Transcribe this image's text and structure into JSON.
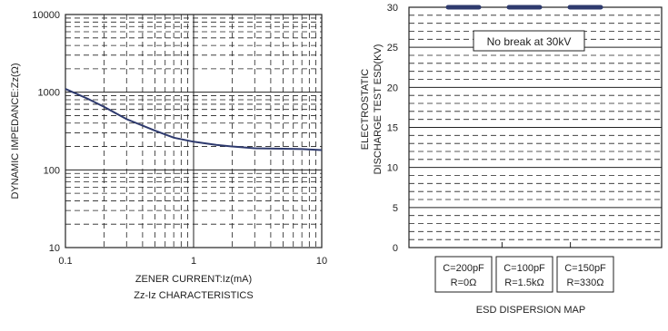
{
  "chart_data": [
    {
      "type": "line",
      "title": "Zz-Iz CHARACTERISTICS",
      "xlabel": "ZENER CURRENT:Iz(mA)",
      "ylabel": "DYNAMIC IMPEDANCE:Zz(Ω)",
      "xscale": "log",
      "yscale": "log",
      "xlim": [
        0.1,
        10
      ],
      "ylim": [
        10,
        10000
      ],
      "x_ticks": [
        "0.1",
        "1",
        "10"
      ],
      "y_ticks": [
        "10",
        "100",
        "1000",
        "10000"
      ],
      "grid": true,
      "line_color": "#2e3a6e",
      "series": [
        {
          "x": [
            0.1,
            0.15,
            0.2,
            0.3,
            0.5,
            0.7,
            1,
            1.5,
            2,
            3,
            5,
            7,
            10
          ],
          "y": [
            1100,
            820,
            650,
            450,
            320,
            260,
            230,
            210,
            200,
            190,
            187,
            185,
            180
          ]
        }
      ]
    },
    {
      "type": "bar",
      "title": "ESD DISPERSION MAP",
      "ylabel": "ELECTROSTATIC DISCHARGE TEST ESD(KV)",
      "ylim": [
        0,
        30
      ],
      "y_ticks": [
        "0",
        "5",
        "10",
        "15",
        "20",
        "25",
        "30"
      ],
      "grid": true,
      "annotation": "No break at 30kV",
      "bar_color": "#2e3a6e",
      "categories": [
        {
          "line1": "C=200pF",
          "line2": "R=0Ω"
        },
        {
          "line1": "C=100pF",
          "line2": "R=1.5kΩ"
        },
        {
          "line1": "C=150pF",
          "line2": "R=330Ω"
        }
      ],
      "values": [
        30,
        30,
        30
      ]
    }
  ]
}
